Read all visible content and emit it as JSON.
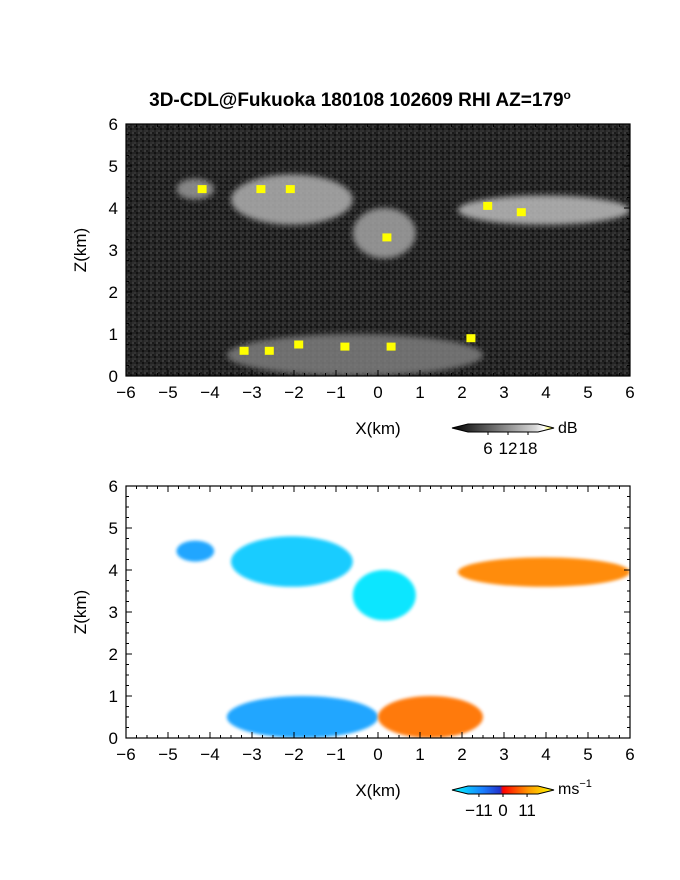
{
  "title": "3D-CDL@Fukuoka 180108 102609 RHI AZ=179",
  "title_superscript": "o",
  "chart_data": [
    {
      "type": "heatmap",
      "panel": "top",
      "xlabel": "X(km)",
      "ylabel": "Z(km)",
      "xlim": [
        -6,
        6
      ],
      "ylim": [
        0,
        6
      ],
      "x_ticks": [
        "-6",
        "-5",
        "-4",
        "-3",
        "-2",
        "-1",
        "0",
        "1",
        "2",
        "3",
        "4",
        "5",
        "6"
      ],
      "y_ticks": [
        "0",
        "1",
        "2",
        "3",
        "4",
        "5",
        "6"
      ],
      "colorbar": {
        "unit": "dB",
        "ticks": [
          "6",
          "12",
          "18"
        ],
        "tick_values": [
          6,
          12,
          18
        ],
        "range": [
          0,
          21
        ],
        "low_color": "#000000",
        "high_color": "#ffff00"
      },
      "background_color": "#222222",
      "regions": [
        {
          "x": [
            -4.8,
            -3.9
          ],
          "z": [
            4.2,
            4.7
          ],
          "intensity": 12
        },
        {
          "x": [
            -3.5,
            -0.6
          ],
          "z": [
            3.6,
            4.8
          ],
          "intensity": 14
        },
        {
          "x": [
            -0.6,
            0.9
          ],
          "z": [
            2.8,
            4.0
          ],
          "intensity": 13
        },
        {
          "x": [
            1.9,
            6.0
          ],
          "z": [
            3.6,
            4.3
          ],
          "intensity": 15
        },
        {
          "x": [
            -3.6,
            2.5
          ],
          "z": [
            0.0,
            1.0
          ],
          "intensity": 10
        }
      ],
      "high_echo_spots": [
        {
          "x": -4.2,
          "z": 4.45
        },
        {
          "x": -2.8,
          "z": 4.45
        },
        {
          "x": -2.1,
          "z": 4.45
        },
        {
          "x": 0.2,
          "z": 3.3
        },
        {
          "x": 2.6,
          "z": 4.05
        },
        {
          "x": 3.4,
          "z": 3.9
        },
        {
          "x": -3.2,
          "z": 0.6
        },
        {
          "x": -2.6,
          "z": 0.6
        },
        {
          "x": -1.9,
          "z": 0.75
        },
        {
          "x": -0.8,
          "z": 0.7
        },
        {
          "x": 0.3,
          "z": 0.7
        },
        {
          "x": 2.2,
          "z": 0.9
        }
      ]
    },
    {
      "type": "heatmap",
      "panel": "bottom",
      "xlabel": "X(km)",
      "ylabel": "Z(km)",
      "xlim": [
        -6,
        6
      ],
      "ylim": [
        0,
        6
      ],
      "x_ticks": [
        "-6",
        "-5",
        "-4",
        "-3",
        "-2",
        "-1",
        "0",
        "1",
        "2",
        "3",
        "4",
        "5",
        "6"
      ],
      "y_ticks": [
        "0",
        "1",
        "2",
        "3",
        "4",
        "5",
        "6"
      ],
      "colorbar": {
        "unit": "ms",
        "unit_superscript": "−1",
        "ticks": [
          "−11",
          "0",
          "11"
        ],
        "tick_values": [
          -11,
          0,
          11
        ],
        "range": [
          -16,
          16
        ],
        "low_color": "#00ffff",
        "high_color": "#ffff00"
      },
      "background_color": "#ffffff",
      "regions": [
        {
          "x": [
            -4.8,
            -3.9
          ],
          "z": [
            4.2,
            4.7
          ],
          "velocity": -9
        },
        {
          "x": [
            -3.5,
            -0.6
          ],
          "z": [
            3.6,
            4.8
          ],
          "velocity": -12
        },
        {
          "x": [
            -0.6,
            0.9
          ],
          "z": [
            2.8,
            4.0
          ],
          "velocity": -14
        },
        {
          "x": [
            1.9,
            6.0
          ],
          "z": [
            3.6,
            4.3
          ],
          "velocity": 7
        },
        {
          "x": [
            -3.6,
            0.0
          ],
          "z": [
            0.0,
            1.0
          ],
          "velocity": -9
        },
        {
          "x": [
            0.0,
            2.5
          ],
          "z": [
            0.0,
            1.0
          ],
          "velocity": 6
        }
      ]
    }
  ]
}
